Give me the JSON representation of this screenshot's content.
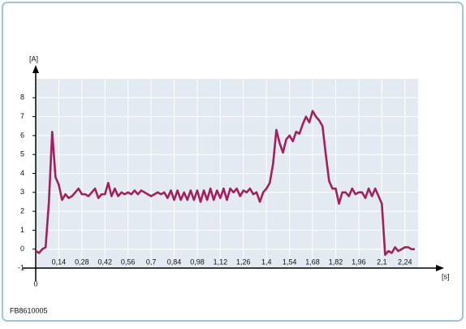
{
  "chart_data": {
    "type": "line",
    "y_label": "[A]",
    "x_label": "[s]",
    "footer": "FB8610005",
    "x": [
      0,
      0.02,
      0.04,
      0.06,
      0.08,
      0.1,
      0.12,
      0.14,
      0.16,
      0.18,
      0.2,
      0.22,
      0.24,
      0.26,
      0.28,
      0.3,
      0.32,
      0.34,
      0.36,
      0.38,
      0.4,
      0.42,
      0.44,
      0.46,
      0.48,
      0.5,
      0.52,
      0.54,
      0.56,
      0.58,
      0.6,
      0.62,
      0.64,
      0.66,
      0.68,
      0.7,
      0.72,
      0.74,
      0.76,
      0.78,
      0.8,
      0.82,
      0.84,
      0.86,
      0.88,
      0.9,
      0.92,
      0.94,
      0.96,
      0.98,
      1,
      1.02,
      1.04,
      1.06,
      1.08,
      1.1,
      1.12,
      1.14,
      1.16,
      1.18,
      1.2,
      1.22,
      1.24,
      1.26,
      1.28,
      1.3,
      1.32,
      1.34,
      1.36,
      1.38,
      1.4,
      1.42,
      1.44,
      1.46,
      1.48,
      1.5,
      1.52,
      1.54,
      1.56,
      1.58,
      1.6,
      1.62,
      1.64,
      1.66,
      1.68,
      1.7,
      1.72,
      1.74,
      1.76,
      1.78,
      1.8,
      1.82,
      1.84,
      1.86,
      1.88,
      1.9,
      1.92,
      1.94,
      1.96,
      1.98,
      2,
      2.02,
      2.04,
      2.06,
      2.08,
      2.1,
      2.12,
      2.14,
      2.16,
      2.18,
      2.2,
      2.22,
      2.24,
      2.26,
      2.28,
      2.3
    ],
    "values": [
      -0.1,
      -0.2,
      0,
      0.1,
      2.5,
      6.2,
      3.8,
      3.4,
      2.6,
      2.9,
      2.7,
      2.8,
      3.0,
      3.2,
      2.9,
      2.9,
      2.8,
      3.0,
      3.2,
      2.7,
      2.9,
      2.9,
      3.5,
      2.8,
      3.2,
      2.8,
      3.0,
      2.9,
      3.0,
      2.9,
      3.1,
      2.9,
      3.1,
      3.0,
      2.9,
      2.8,
      2.9,
      3.0,
      2.9,
      3.0,
      2.7,
      3.1,
      2.6,
      3.1,
      2.6,
      3.0,
      2.6,
      3.1,
      2.6,
      3.1,
      2.5,
      3.1,
      2.6,
      3.2,
      2.6,
      3.1,
      2.7,
      3.2,
      2.6,
      3.2,
      3.0,
      3.2,
      2.8,
      3.1,
      3.0,
      3.2,
      2.9,
      3.0,
      2.5,
      3.0,
      3.2,
      3.5,
      4.5,
      6.3,
      5.6,
      5.1,
      5.8,
      6.0,
      5.7,
      6.2,
      6.1,
      6.6,
      7.0,
      6.7,
      7.3,
      7.0,
      6.8,
      6.5,
      5.0,
      3.6,
      3.2,
      3.2,
      2.4,
      3.0,
      3.0,
      2.8,
      3.2,
      2.9,
      3.0,
      3.0,
      2.7,
      3.2,
      2.8,
      3.2,
      2.8,
      2.4,
      -0.3,
      -0.1,
      -0.2,
      0.1,
      -0.1,
      0,
      0.1,
      0.1,
      0,
      0
    ],
    "color": "#a3205f",
    "xlim": [
      0,
      2.32
    ],
    "ylim": [
      -1,
      9
    ],
    "xticks": [
      0,
      {
        "value": 0.14,
        "label": "0,14"
      },
      {
        "value": 0.28,
        "label": "0,28"
      },
      {
        "value": 0.42,
        "label": "0,42"
      },
      {
        "value": 0.56,
        "label": "0,56"
      },
      {
        "value": 0.7,
        "label": "0,7"
      },
      {
        "value": 0.84,
        "label": "0,84"
      },
      {
        "value": 0.98,
        "label": "0,98"
      },
      {
        "value": 1.12,
        "label": "1,12"
      },
      {
        "value": 1.26,
        "label": "1,26"
      },
      {
        "value": 1.4,
        "label": "1,4"
      },
      {
        "value": 1.54,
        "label": "1,54"
      },
      {
        "value": 1.68,
        "label": "1,68"
      },
      {
        "value": 1.82,
        "label": "1,82"
      },
      {
        "value": 1.96,
        "label": "1,96"
      },
      {
        "value": 2.1,
        "label": "2,1"
      },
      {
        "value": 2.24,
        "label": "2,24"
      }
    ],
    "yticks": [
      -1,
      0,
      1,
      2,
      3,
      4,
      5,
      6,
      7,
      8
    ],
    "grid": true
  }
}
